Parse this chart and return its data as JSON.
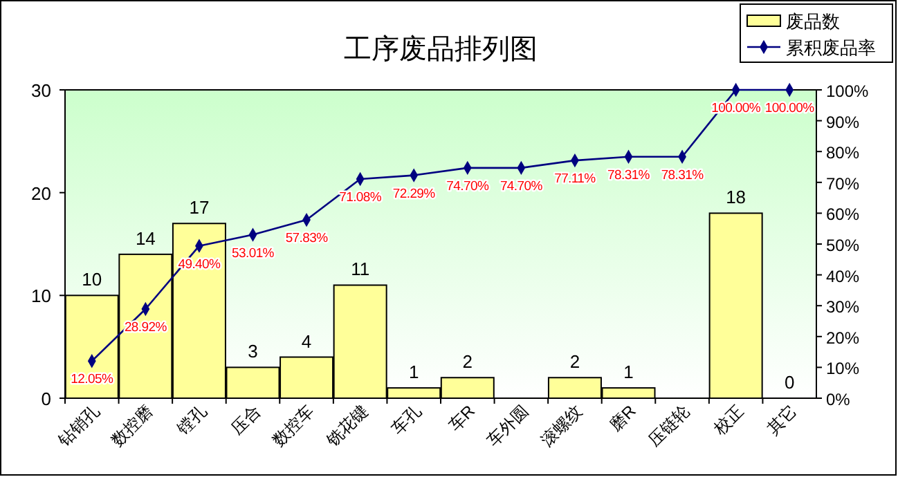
{
  "chart_data": {
    "type": "bar",
    "title": "工序废品排列图",
    "categories": [
      "钻销孔",
      "数控磨",
      "镗孔",
      "压合",
      "数控车",
      "铣花键",
      "车孔",
      "车R",
      "车外圆",
      "滚螺纹",
      "磨R",
      "压链轮",
      "校正",
      "其它"
    ],
    "series": [
      {
        "name": "废品数",
        "color": "#ffff99",
        "values": [
          10,
          14,
          17,
          3,
          4,
          11,
          1,
          2,
          0,
          2,
          1,
          0,
          18,
          0
        ],
        "value_labels": [
          "10",
          "14",
          "17",
          "3",
          "4",
          "11",
          "1",
          "2",
          null,
          "2",
          "1",
          null,
          "18",
          "0"
        ]
      },
      {
        "name": "累积废品率",
        "type": "line",
        "axis": "y2",
        "color": "#000080",
        "marker": "diamond",
        "values": [
          12.05,
          28.92,
          49.4,
          53.01,
          57.83,
          71.08,
          72.29,
          74.7,
          74.7,
          77.11,
          78.31,
          78.31,
          100,
          100
        ],
        "value_labels": [
          "12.05%",
          "28.92%",
          "49.40%",
          "53.01%",
          "57.83%",
          "71.08%",
          "72.29%",
          "74.70%",
          "74.70%",
          "77.11%",
          "78.31%",
          "78.31%",
          "100.00%",
          "100.00%"
        ]
      }
    ],
    "ylim": [
      0,
      30
    ],
    "yticks": [
      0,
      10,
      20,
      30
    ],
    "y2lim": [
      0,
      100
    ],
    "y2ticks": [
      {
        "value": 0,
        "label": "0%"
      },
      {
        "value": 10,
        "label": "10%"
      },
      {
        "value": 20,
        "label": "20%"
      },
      {
        "value": 30,
        "label": "30%"
      },
      {
        "value": 40,
        "label": "40%"
      },
      {
        "value": 50,
        "label": "50%"
      },
      {
        "value": 60,
        "label": "60%"
      },
      {
        "value": 70,
        "label": "70%"
      },
      {
        "value": 80,
        "label": "80%"
      },
      {
        "value": 90,
        "label": "90%"
      },
      {
        "value": 100,
        "label": "100%"
      }
    ],
    "legend": "top right",
    "grid": false
  }
}
